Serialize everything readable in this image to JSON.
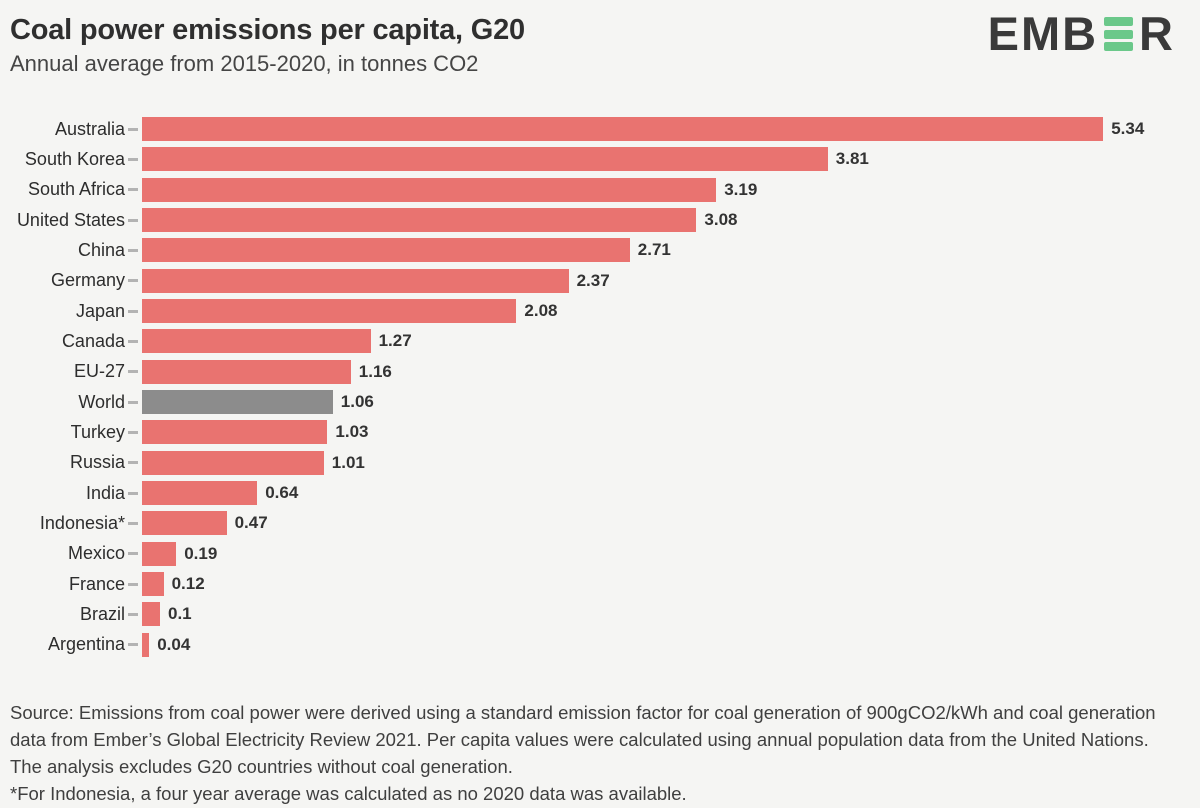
{
  "header": {
    "title": "Coal power emissions per capita, G20",
    "subtitle": "Annual average from 2015-2020, in tonnes CO2"
  },
  "logo": {
    "name": "Ember",
    "text_before": "EMB",
    "text_after": "R",
    "green_bar_color": "#6bc88a",
    "text_color": "#3a3a3a"
  },
  "colors": {
    "background": "#f5f5f3",
    "bar": "#e97370",
    "highlight_bar": "#8c8c8c",
    "tick": "#b3b3b3",
    "title_text": "#2f2f2f",
    "body_text": "#3f3f3f"
  },
  "chart_data": {
    "type": "bar",
    "orientation": "horizontal",
    "title": "Coal power emissions per capita, G20",
    "subtitle": "Annual average from 2015-2020, in tonnes CO2",
    "unit": "tonnes CO2 per capita",
    "categories": [
      "Australia",
      "South Korea",
      "South Africa",
      "United States",
      "China",
      "Germany",
      "Japan",
      "Canada",
      "EU-27",
      "World",
      "Turkey",
      "Russia",
      "India",
      "Indonesia*",
      "Mexico",
      "France",
      "Brazil",
      "Argentina"
    ],
    "values": [
      5.34,
      3.81,
      3.19,
      3.08,
      2.71,
      2.37,
      2.08,
      1.27,
      1.16,
      1.06,
      1.03,
      1.01,
      0.64,
      0.47,
      0.19,
      0.12,
      0.1,
      0.04
    ],
    "value_labels": [
      "5.34",
      "3.81",
      "3.19",
      "3.08",
      "2.71",
      "2.37",
      "2.08",
      "1.27",
      "1.16",
      "1.06",
      "1.03",
      "1.01",
      "0.64",
      "0.47",
      "0.19",
      "0.12",
      "0.1",
      "0.04"
    ],
    "highlight_category": "World",
    "xlim": [
      0,
      5.9
    ],
    "grid": false,
    "legend": false,
    "value_labels_position": "end-of-bar"
  },
  "footer": {
    "source_lines": [
      "Source: Emissions from coal power were derived using a standard emission factor for coal generation of 900gCO2/kWh and coal generation",
      "data from Ember’s Global Electricity Review 2021. Per capita values were calculated using annual population data from the United Nations.",
      "The analysis excludes G20 countries without coal generation."
    ],
    "footnote": "*For Indonesia, a four year average was calculated as no 2020 data was available."
  }
}
